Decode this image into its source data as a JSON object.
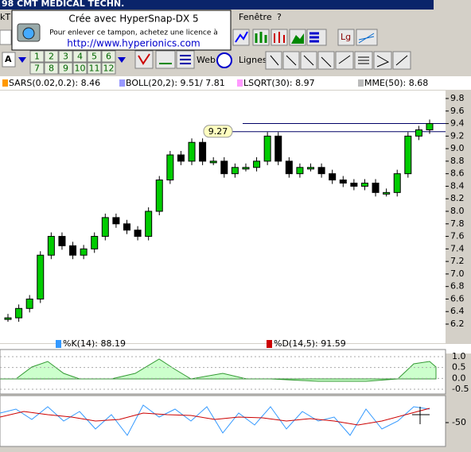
{
  "window": {
    "title": "98  CMT MEDICAL TECHN.",
    "menu": [
      "kT",
      "Fenêtre",
      "?"
    ]
  },
  "stamp": {
    "line1": "Crée avec HyperSnap-DX 5",
    "line2": "Pour enlever ce tampon, achetez une licence à",
    "url": "http://www.hyperionics.com"
  },
  "toolbar": {
    "font_button": "A",
    "numbers": [
      "1",
      "2",
      "3",
      "4",
      "5",
      "6",
      "7",
      "8",
      "9",
      "10",
      "11",
      "12"
    ],
    "web": "Web",
    "lines": "Lignes"
  },
  "indicators": [
    "SARS(0.02,0.2): 8.46",
    "BOLL(20,2): 9.51/ 7.81",
    "LSQRT(30): 8.97",
    "MME(50): 8.68"
  ],
  "price": {
    "ylim": [
      6.2,
      9.8
    ],
    "yticks": [
      9.8,
      9.6,
      9.4,
      9.2,
      9.0,
      8.8,
      8.6,
      8.4,
      8.2,
      8.0,
      7.8,
      7.6,
      7.4,
      7.2,
      7.0,
      6.8,
      6.6,
      6.4,
      6.2
    ],
    "callout": 9.27,
    "resistance": 9.4,
    "closes": [
      6.3,
      6.45,
      6.6,
      7.3,
      7.6,
      7.45,
      7.3,
      7.4,
      7.6,
      7.9,
      7.8,
      7.7,
      7.6,
      8.0,
      8.5,
      8.9,
      8.8,
      9.1,
      8.8,
      8.8,
      8.6,
      8.7,
      8.7,
      8.8,
      9.2,
      8.8,
      8.6,
      8.7,
      8.7,
      8.6,
      8.5,
      8.45,
      8.4,
      8.45,
      8.3,
      8.3,
      8.6,
      9.2,
      9.3,
      9.4
    ]
  },
  "stochastic": {
    "labels": [
      "%K(14): 88.19",
      "%D(14,5): 91.59"
    ],
    "ylim": [
      -0.5,
      1.0
    ],
    "yticks": [
      1.0,
      0.5,
      0.0,
      -0.5
    ]
  },
  "oscillator": {
    "ylim": [
      -100,
      0
    ],
    "yticks": [
      -50
    ]
  }
}
